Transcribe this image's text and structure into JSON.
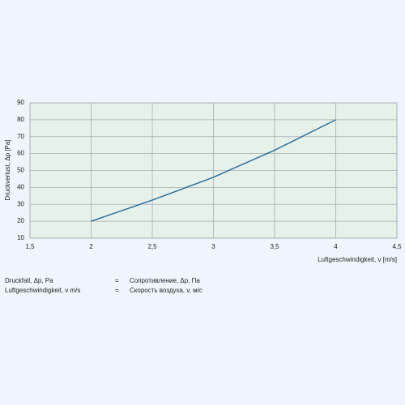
{
  "chart_data": {
    "type": "line",
    "x_label": "Luftgeschwindigkeit, v [m/s]",
    "y_label": "Druckverlust, Δp [Pa]",
    "x": [
      2,
      2.5,
      3,
      3.5,
      4
    ],
    "values": [
      20,
      32.5,
      46,
      62,
      80
    ],
    "color": "#2f6f9f",
    "xlim": [
      1.5,
      4.5
    ],
    "xticks": [
      {
        "value": 1.5,
        "label": "1,5"
      },
      2,
      {
        "value": 2.5,
        "label": "2,5"
      },
      3,
      {
        "value": 3.5,
        "label": "3,5"
      },
      4,
      {
        "value": 4.5,
        "label": "4,5"
      }
    ],
    "ylim": [
      10,
      90
    ],
    "yticks": [
      10,
      20,
      30,
      40,
      50,
      60,
      70,
      80,
      90
    ],
    "grid": true
  },
  "legend_table": {
    "rows": [
      [
        "Druckfall, Δp, Pa",
        "=",
        "Сопротивление, Δp, Па"
      ],
      [
        "Luftgeschwindigkeit, v m/s",
        "=",
        "Скорость воздуха, v, м/с"
      ]
    ]
  }
}
